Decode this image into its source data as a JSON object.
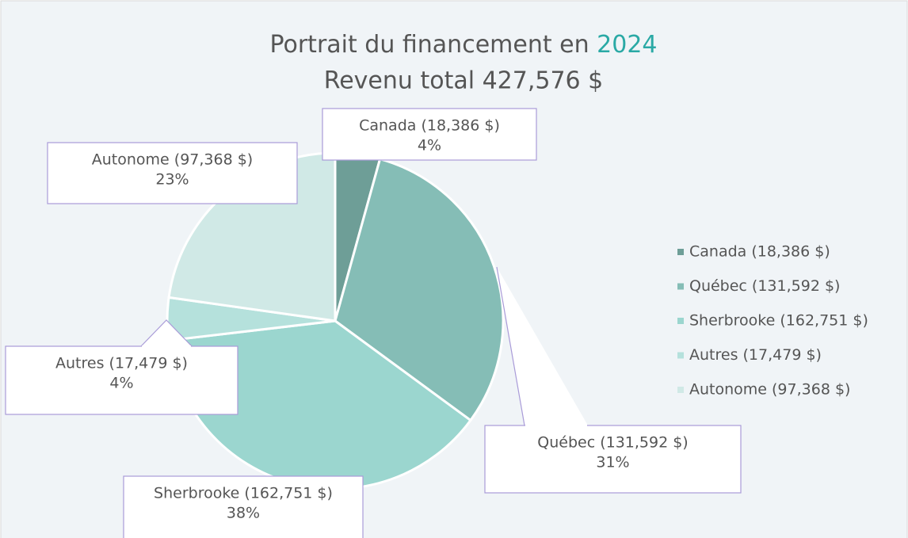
{
  "chart_data": {
    "type": "pie",
    "title": {
      "text": "Portrait du financement en",
      "highlight": "2024"
    },
    "subtitle": "Revenu total 427,576 $",
    "categories": [
      "Canada (18,386 $)",
      "Québec (131,592 $)",
      "Sherbrooke (162,751 $)",
      "Autres (17,479 $)",
      "Autonome (97,368 $)"
    ],
    "values": [
      4.3,
      30.78,
      38.06,
      4.09,
      22.77
    ],
    "value_labels": [
      "4%",
      "31%",
      "38%",
      "4%",
      "23%"
    ],
    "colors": [
      "#6e9e97",
      "#85bdb6",
      "#9bd6cf",
      "#b5e1dc",
      "#d0e9e6"
    ],
    "legend": "right"
  }
}
